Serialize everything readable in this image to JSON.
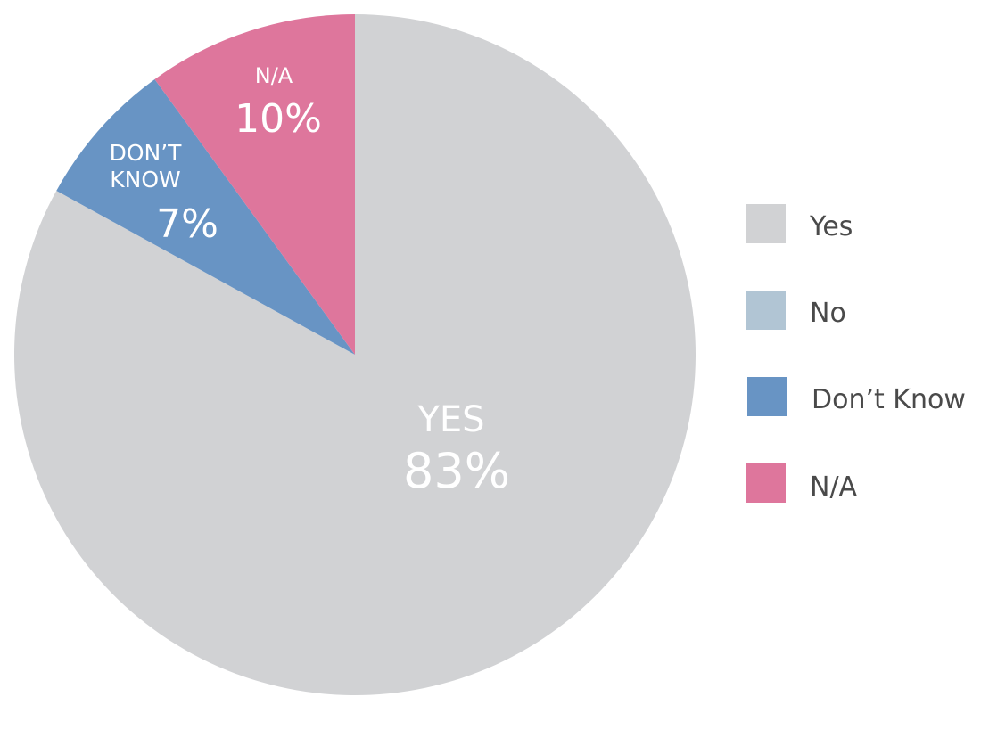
{
  "chart_data": {
    "type": "pie",
    "title": "",
    "slices": [
      {
        "name": "Yes",
        "value": 83,
        "color": "#d1d2d4",
        "label": "YES",
        "value_label": "83%",
        "label_color": "#ffffff",
        "value_color": "#1f4e9c"
      },
      {
        "name": "No",
        "value": 0,
        "color": "#b1c5d4",
        "label": "",
        "value_label": "",
        "label_color": "#ffffff",
        "value_color": "#ffffff"
      },
      {
        "name": "Don’t Know",
        "value": 7,
        "color": "#6894c4",
        "label": "DON’T KNOW",
        "value_label": "7%",
        "label_color": "#ffffff",
        "value_color": "#ffffff"
      },
      {
        "name": "N/A",
        "value": 10,
        "color": "#de769c",
        "label": "N/A",
        "value_label": "10%",
        "label_color": "#ffffff",
        "value_color": "#ffffff"
      }
    ],
    "legend": {
      "placement": "right",
      "items": [
        {
          "label": "Yes",
          "color": "#d1d2d4"
        },
        {
          "label": "No",
          "color": "#b1c5d4"
        },
        {
          "label": "Don’t Know",
          "color": "#6894c4"
        },
        {
          "label": "N/A",
          "color": "#de769c"
        }
      ]
    }
  }
}
